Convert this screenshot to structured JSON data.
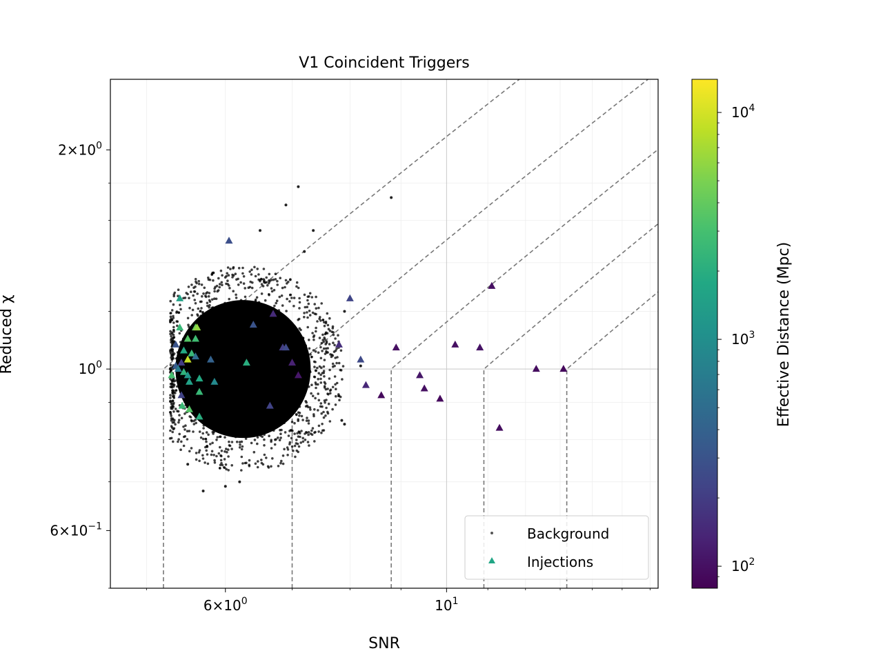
{
  "chart_data": {
    "type": "scatter",
    "title": "V1 Coincident Triggers",
    "xlabel": "SNR",
    "ylabel": "Reduced χ",
    "xscale": "log",
    "yscale": "log",
    "xlim": [
      4.6,
      16.3
    ],
    "ylim": [
      0.5,
      2.5
    ],
    "grid": true,
    "legend": {
      "placement": "lower-right",
      "entries": [
        "Background",
        "Injections"
      ]
    },
    "x_ticks": [
      {
        "value": 6,
        "label": "6×10^0",
        "base": "6×10",
        "exp": "0"
      },
      {
        "value": 10,
        "label": "10^1",
        "base": "10",
        "exp": "1"
      }
    ],
    "y_ticks": [
      {
        "value": 2,
        "label": "2×10^0",
        "base": "2×10",
        "exp": "0"
      },
      {
        "value": 1,
        "label": "10^0",
        "base": "10",
        "exp": "0"
      },
      {
        "value": 0.6,
        "label": "6×10^-1",
        "base": "6×10",
        "exp": "−1"
      }
    ],
    "colorbar": {
      "label": "Effective Distance (Mpc)",
      "scale": "log",
      "colormap": "viridis",
      "range": [
        80,
        14000
      ],
      "ticks": [
        {
          "value": 100,
          "base": "10",
          "exp": "2"
        },
        {
          "value": 1000,
          "base": "10",
          "exp": "3"
        },
        {
          "value": 10000,
          "base": "10",
          "exp": "4"
        }
      ]
    },
    "series": [
      {
        "name": "Background",
        "marker": "dot",
        "color": "#000000",
        "description_cluster": {
          "x_range": [
            5.3,
            7.6
          ],
          "y_range": [
            0.78,
            1.35
          ],
          "center": [
            6.2,
            1.0
          ]
        },
        "outliers": [
          [
            7.1,
            1.78
          ],
          [
            7.35,
            1.55
          ],
          [
            6.9,
            1.68
          ],
          [
            5.7,
            0.68
          ],
          [
            6.2,
            0.7
          ],
          [
            7.9,
            0.84
          ],
          [
            7.85,
            0.85
          ],
          [
            6.5,
            1.55
          ],
          [
            8.8,
            1.72
          ],
          [
            7.2,
            1.45
          ],
          [
            5.5,
            0.74
          ],
          [
            6.0,
            0.69
          ],
          [
            8.2,
            1.01
          ],
          [
            7.9,
            1.2
          ]
        ]
      },
      {
        "name": "Injections",
        "marker": "triangle",
        "legend_color": "#21a685",
        "points": [
          [
            5.4,
            1.25,
            1500
          ],
          [
            5.4,
            1.14,
            2500
          ],
          [
            5.6,
            1.14,
            4000
          ],
          [
            5.62,
            1.14,
            6000
          ],
          [
            5.5,
            1.1,
            3500
          ],
          [
            5.6,
            1.1,
            2800
          ],
          [
            5.35,
            1.08,
            300
          ],
          [
            5.45,
            1.06,
            1800
          ],
          [
            5.55,
            1.05,
            2500
          ],
          [
            5.6,
            1.04,
            500
          ],
          [
            5.5,
            1.03,
            9000
          ],
          [
            5.42,
            1.02,
            200
          ],
          [
            5.35,
            1.01,
            350
          ],
          [
            5.38,
            1.0,
            700
          ],
          [
            5.45,
            0.99,
            2200
          ],
          [
            5.3,
            0.98,
            3000
          ],
          [
            5.5,
            0.98,
            1200
          ],
          [
            5.65,
            0.97,
            1800
          ],
          [
            5.52,
            0.96,
            1500
          ],
          [
            5.85,
            0.96,
            900
          ],
          [
            5.65,
            0.93,
            2500
          ],
          [
            5.42,
            0.92,
            220
          ],
          [
            5.43,
            0.89,
            2600
          ],
          [
            5.52,
            0.88,
            3500
          ],
          [
            5.65,
            0.86,
            2000
          ],
          [
            5.8,
            1.03,
            400
          ],
          [
            6.05,
            1.5,
            280
          ],
          [
            6.3,
            1.02,
            2000
          ],
          [
            6.4,
            1.15,
            300
          ],
          [
            6.7,
            1.19,
            150
          ],
          [
            6.85,
            1.07,
            200
          ],
          [
            6.9,
            1.07,
            250
          ],
          [
            6.65,
            0.89,
            220
          ],
          [
            7.0,
            1.02,
            130
          ],
          [
            7.1,
            0.98,
            110
          ],
          [
            7.8,
            1.08,
            160
          ],
          [
            8.0,
            1.25,
            230
          ],
          [
            8.2,
            1.03,
            250
          ],
          [
            8.3,
            0.95,
            140
          ],
          [
            8.6,
            0.92,
            90
          ],
          [
            8.9,
            1.07,
            100
          ],
          [
            9.4,
            0.98,
            110
          ],
          [
            9.5,
            0.94,
            100
          ],
          [
            9.85,
            0.91,
            90
          ],
          [
            10.2,
            1.08,
            100
          ],
          [
            10.8,
            1.07,
            105
          ],
          [
            11.1,
            1.3,
            100
          ],
          [
            11.3,
            0.83,
            95
          ],
          [
            12.3,
            1.0,
            95
          ],
          [
            13.1,
            1.0,
            90
          ]
        ]
      }
    ],
    "contours": {
      "style": "dashed",
      "color": "#777777",
      "thresholds_snr": [
        5.2,
        7.0,
        8.8,
        10.9,
        13.2
      ]
    }
  }
}
